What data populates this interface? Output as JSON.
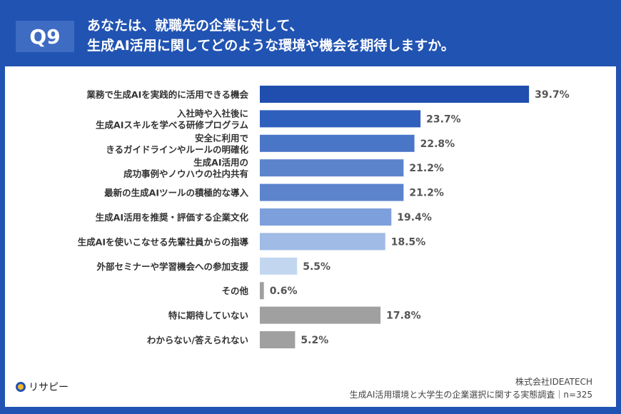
{
  "header": {
    "q_badge": "Q9",
    "title_line1": "あなたは、就職先の企業に対して、",
    "title_line2": "生成AI活用に関してどのような環境や機会を期待しますか。"
  },
  "chart_data": {
    "type": "bar",
    "orientation": "horizontal",
    "categories": [
      [
        "業務で生成AIを実践的に活用できる機会"
      ],
      [
        "入社時や入社後に",
        "生成AIスキルを学べる研修プログラム"
      ],
      [
        "安全に利用で",
        "きるガイドラインやルールの明確化"
      ],
      [
        "生成AI活用の",
        "成功事例やノウハウの社内共有"
      ],
      [
        "最新の生成AIツールの積極的な導入"
      ],
      [
        "生成AI活用を推奨・評価する企業文化"
      ],
      [
        "生成AIを使いこなせる先輩社員からの指導"
      ],
      [
        "外部セミナーや学習機会への参加支援"
      ],
      [
        "その他"
      ],
      [
        "特に期待していない"
      ],
      [
        "わからない/答えられない"
      ]
    ],
    "values": [
      39.7,
      23.7,
      22.8,
      21.2,
      21.2,
      19.4,
      18.5,
      5.5,
      0.6,
      17.8,
      5.2
    ],
    "value_labels": [
      "39.7%",
      "23.7%",
      "22.8%",
      "21.2%",
      "21.2%",
      "19.4%",
      "18.5%",
      "5.5%",
      "0.6%",
      "17.8%",
      "5.2%"
    ],
    "colors": [
      "#1f4eae",
      "#2f5fbd",
      "#4a76c8",
      "#5c84cd",
      "#5c84cd",
      "#7d9fdb",
      "#9fbbe6",
      "#c2d7ef",
      "#a0a0a0",
      "#a0a0a0",
      "#a0a0a0"
    ],
    "grid": false,
    "legend": "none"
  },
  "footer": {
    "company": "株式会社IDEATECH",
    "survey": "生成AI活用環境と大学生の企業選択に関する実態調査｜n=325",
    "logo_text": "リサピー"
  }
}
